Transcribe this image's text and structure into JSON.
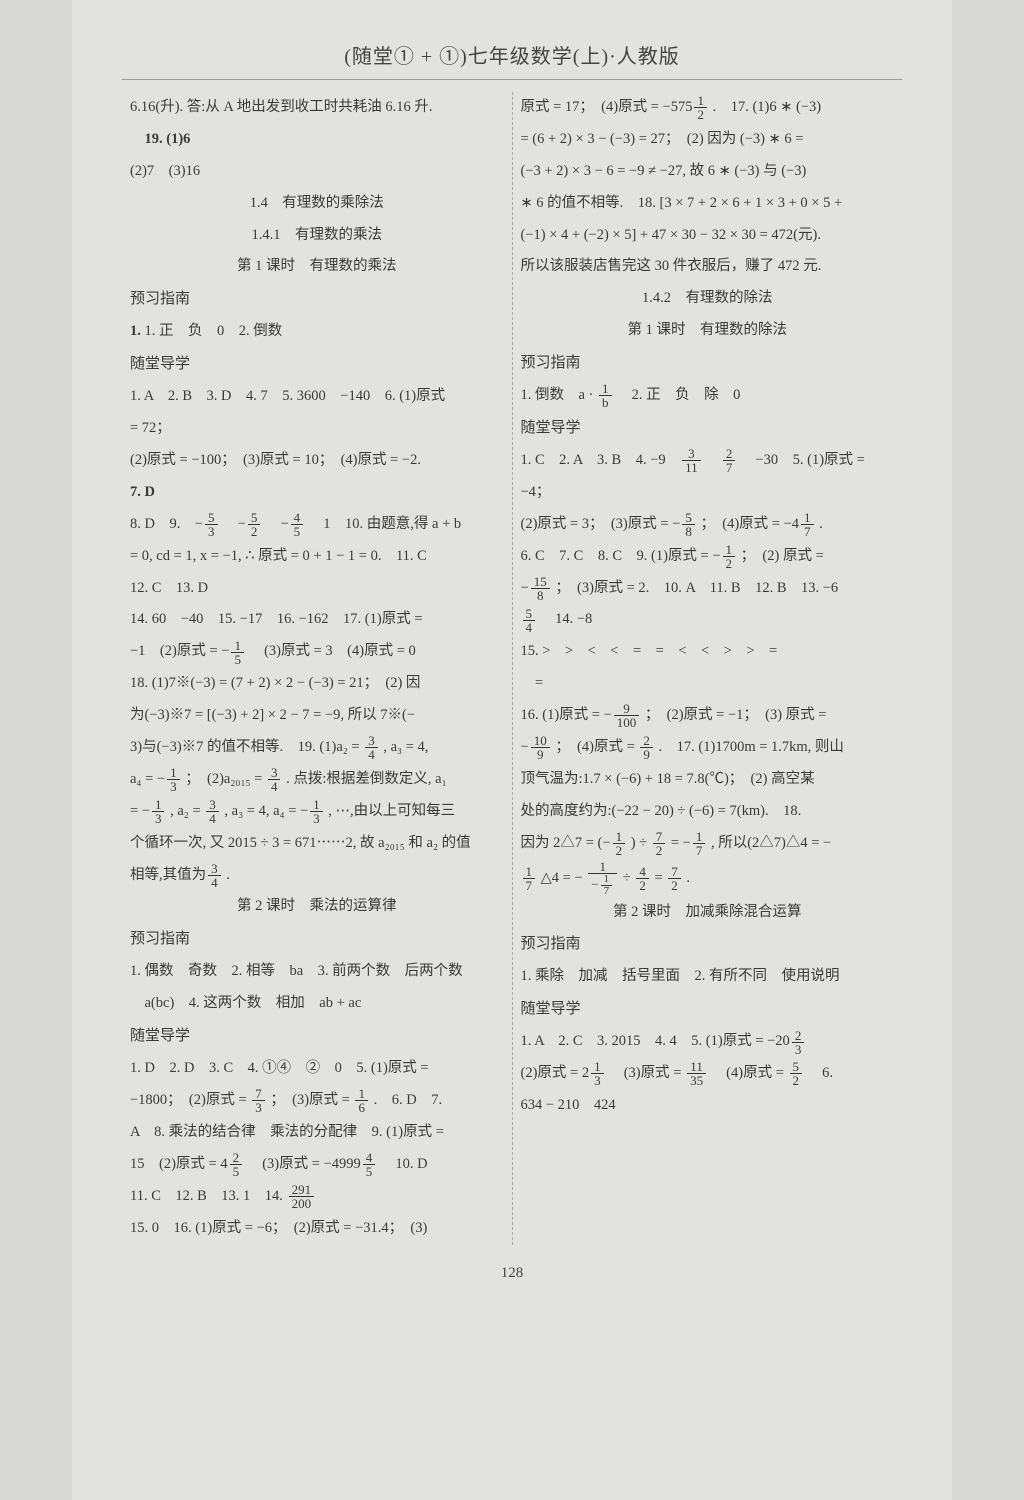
{
  "header": "(随堂① + ①)七年级数学(上)·人教版",
  "page_number": "128",
  "left": {
    "l1": "6.16(升). 答:从 A 地出发到收工时共耗油 6.16 升.",
    "l2": "19. (1)6",
    "l3": "(2)7　(3)16",
    "sec1": "1.4　有理数的乘除法",
    "sec2": "1.4.1　有理数的乘法",
    "sec3": "第 1 课时　有理数的乘法",
    "yuxi": "预习指南",
    "l4": "1. 正　负　0　2. 倒数",
    "daoxue": "随堂导学",
    "l5": "1. A　2. B　3. D　4. 7　5. 3600　−140　6. (1)原式",
    "l6": "= 72；",
    "l7": "(2)原式 = −100；　(3)原式 = 10；　(4)原式 = −2.",
    "l8": "7. D",
    "l9a": "8. D　9.　−",
    "l9b": "　−",
    "l9c": "　−",
    "l9d": "　1　10. 由题意,得 a + b",
    "l10": "= 0, cd = 1, x = −1, ∴ 原式 = 0 + 1 − 1 = 0.　11. C",
    "l11": "12. C　13. D",
    "l12": "14. 60　−40　15. −17　16. −162　17. (1)原式 =",
    "l13a": "−1　(2)原式 = −",
    "l13b": "　(3)原式 = 3　(4)原式 = 0",
    "l14": "18. (1)7※(−3) = (7 + 2) × 2 − (−3) = 21；　(2) 因",
    "l15": "为(−3)※7 = [(−3) + 2] × 2 − 7 = −9, 所以 7※(−",
    "l16a": "3)与(−3)※7 的值不相等.　19. (1)a₂ = ",
    "l16b": ", a₃ = 4,",
    "l17a": "a₄ = −",
    "l17b": "；　(2)a₂₀₁₅ = ",
    "l17c": ". 点拨:根据差倒数定义, a₁",
    "l18a": "= −",
    "l18b": ", a₂ = ",
    "l18c": ", a₃ = 4, a₄ = −",
    "l18d": ", ⋯,由以上可知每三",
    "l19": "个循环一次, 又 2015 ÷ 3 = 671⋯⋯2, 故 a₂₀₁₅ 和 a₂ 的值",
    "l20a": "相等,其值为",
    "l20b": ".",
    "sec4": "第 2 课时　乘法的运算律",
    "yuxi2": "预习指南",
    "l21": "1. 偶数　奇数　2. 相等　ba　3. 前两个数　后两个数",
    "l22": "　a(bc)　4. 这两个数　相加　ab + ac",
    "daoxue2": "随堂导学",
    "l23": "1. D　2. D　3. C　4. ①④　②　0　5. (1)原式 =",
    "l24a": "−1800；　(2)原式 = ",
    "l24b": "；　(3)原式 = ",
    "l24c": ".　6. D　7.",
    "l25": "A　8. 乘法的结合律　乘法的分配律　9. (1)原式 =",
    "l26a": "15　(2)原式 = 4",
    "l26b": "　(3)原式 = −4999",
    "l26c": "　10. D",
    "l27a": "11. C　12. B　13. 1　14. ",
    "l28": "15. 0　16. (1)原式 = −6；　(2)原式 = −31.4；　(3)"
  },
  "right": {
    "r1a": "原式 = 17；　(4)原式 = −575",
    "r1b": ".　17. (1)6 ∗ (−3)",
    "r2": "= (6 + 2) × 3 − (−3) = 27；　(2) 因为 (−3) ∗ 6 =",
    "r3": "(−3 + 2) × 3 − 6 = −9 ≠ −27, 故 6 ∗ (−3) 与 (−3)",
    "r4": "∗ 6 的值不相等.　18. [3 × 7 + 2 × 6 + 1 × 3 + 0 × 5 +",
    "r5": "(−1) × 4 + (−2) × 5] + 47 × 30 − 32 × 30 = 472(元).",
    "r6": "所以该服装店售完这 30 件衣服后，赚了 472 元.",
    "sec1": "1.4.2　有理数的除法",
    "sec2": "第 1 课时　有理数的除法",
    "yuxi": "预习指南",
    "r7a": "1. 倒数　a · ",
    "r7b": "　2. 正　负　除　0",
    "daoxue": "随堂导学",
    "r8a": "1. C　2. A　3. B　4. −9　",
    "r8b": "　",
    "r8c": "　−30　5. (1)原式 =",
    "r9": "−4；",
    "r10a": "(2)原式 = 3；　(3)原式 = −",
    "r10b": "；　(4)原式 = −4",
    "r10c": ".",
    "r11a": "6. C　7. C　8. C　9. (1)原式 = −",
    "r11b": "；　(2) 原式 =",
    "r12a": "−",
    "r12b": "；　(3)原式 = 2.　10. A　11. B　12. B　13. −6",
    "r13a": "",
    "r13b": "　14. −8",
    "r14": "15. >　>　<　<　=　=　<　<　>　>　=",
    "r15": "　=",
    "r16a": "16. (1)原式 = −",
    "r16b": "；　(2)原式 = −1；　(3) 原式 =",
    "r17a": "−",
    "r17b": "；　(4)原式 = ",
    "r17c": ".　17. (1)1700m = 1.7km, 则山",
    "r18": "顶气温为:1.7 × (−6) + 18 = 7.8(℃)；　(2) 高空某",
    "r19": "处的高度约为:(−22 − 20) ÷ (−6) = 7(km).　18.",
    "r20a": "因为 2△7 = (−",
    "r20b": ") ÷ ",
    "r20c": " = −",
    "r20d": ", 所以(2△7)△4 = −",
    "r21a": "",
    "r21b": "△4 = −",
    "r21c": " ÷ ",
    "r21d": " = ",
    "r21e": ".",
    "sec3": "第 2 课时　加减乘除混合运算",
    "yuxi2": "预习指南",
    "r22": "1. 乘除　加减　括号里面　2. 有所不同　使用说明",
    "daoxue2": "随堂导学",
    "r23a": "1. A　2. C　3. 2015　4. 4　5. (1)原式 = −20",
    "r24a": "(2)原式 = 2",
    "r24b": "　(3)原式 = ",
    "r24c": "　(4)原式 = ",
    "r24d": "　6.",
    "r25": "634 − 210　424"
  }
}
